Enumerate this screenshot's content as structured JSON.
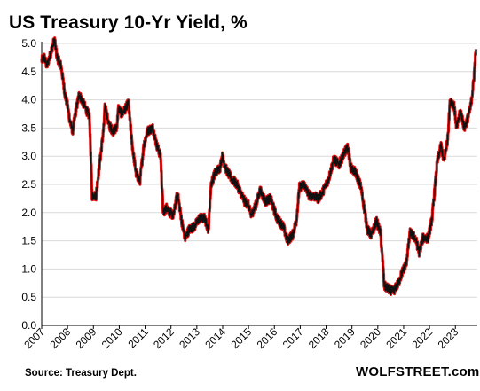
{
  "title": "US Treasury 10-Yr Yield, %",
  "source_note": "Source: Treasury Dept.",
  "brand": "WOLFSTREET.com",
  "colors": {
    "series_fill": "#e01010",
    "series_line": "#111111",
    "grid": "#d9d9d9",
    "axis": "#000000"
  },
  "chart_data": {
    "type": "line",
    "title": "US Treasury 10-Yr Yield, %",
    "xlabel": "",
    "ylabel": "",
    "xlim": [
      2007.0,
      2023.85
    ],
    "ylim": [
      0,
      5.0
    ],
    "grid": true,
    "y_ticks": [
      "0.0",
      "0.5",
      "1.0",
      "1.5",
      "2.0",
      "2.5",
      "3.0",
      "3.5",
      "4.0",
      "4.5",
      "5.0"
    ],
    "x_ticks": [
      "2007",
      "2008",
      "2009",
      "2010",
      "2011",
      "2012",
      "2013",
      "2014",
      "2015",
      "2016",
      "2017",
      "2018",
      "2019",
      "2020",
      "2021",
      "2022",
      "2023"
    ],
    "series": [
      {
        "x": [
          2007.0,
          2007.1,
          2007.2,
          2007.3,
          2007.45,
          2007.5,
          2007.6,
          2007.75,
          2007.9,
          2008.0,
          2008.1,
          2008.2,
          2008.3,
          2008.45,
          2008.55,
          2008.7,
          2008.85,
          2008.95,
          2009.1,
          2009.25,
          2009.4,
          2009.45,
          2009.6,
          2009.75,
          2009.9,
          2009.97,
          2010.1,
          2010.25,
          2010.35,
          2010.5,
          2010.65,
          2010.8,
          2010.95,
          2011.1,
          2011.3,
          2011.45,
          2011.6,
          2011.7,
          2011.85,
          2011.95,
          2012.1,
          2012.25,
          2012.45,
          2012.55,
          2012.7,
          2012.9,
          2013.1,
          2013.3,
          2013.45,
          2013.55,
          2013.7,
          2013.9,
          2013.98,
          2014.15,
          2014.35,
          2014.55,
          2014.75,
          2014.85,
          2014.98,
          2015.1,
          2015.3,
          2015.45,
          2015.65,
          2015.85,
          2016.1,
          2016.35,
          2016.5,
          2016.7,
          2016.85,
          2016.97,
          2017.15,
          2017.35,
          2017.5,
          2017.7,
          2017.85,
          2018.1,
          2018.3,
          2018.5,
          2018.75,
          2018.85,
          2018.95,
          2019.15,
          2019.35,
          2019.6,
          2019.75,
          2019.95,
          2020.1,
          2020.2,
          2020.25,
          2020.4,
          2020.6,
          2020.8,
          2020.95,
          2021.1,
          2021.25,
          2021.45,
          2021.6,
          2021.75,
          2021.95,
          2022.1,
          2022.3,
          2022.45,
          2022.55,
          2022.7,
          2022.8,
          2022.95,
          2023.05,
          2023.2,
          2023.35,
          2023.5,
          2023.6,
          2023.7,
          2023.8
        ],
        "y": [
          4.7,
          4.75,
          4.6,
          4.75,
          5.0,
          5.05,
          4.75,
          4.6,
          4.1,
          3.9,
          3.6,
          3.45,
          3.75,
          4.1,
          4.0,
          3.85,
          3.7,
          2.3,
          2.3,
          2.9,
          3.5,
          3.9,
          3.55,
          3.45,
          3.5,
          3.85,
          3.75,
          3.85,
          3.95,
          3.2,
          2.7,
          2.55,
          3.2,
          3.45,
          3.5,
          3.2,
          3.0,
          2.0,
          2.1,
          2.0,
          1.95,
          2.35,
          1.75,
          1.55,
          1.7,
          1.75,
          1.9,
          1.9,
          1.7,
          2.5,
          2.7,
          2.8,
          3.0,
          2.75,
          2.6,
          2.5,
          2.3,
          2.2,
          2.15,
          1.95,
          2.15,
          2.4,
          2.2,
          2.25,
          1.9,
          1.75,
          1.5,
          1.6,
          1.85,
          2.45,
          2.5,
          2.3,
          2.3,
          2.25,
          2.35,
          2.6,
          2.95,
          2.85,
          3.1,
          3.15,
          2.8,
          2.7,
          2.45,
          1.7,
          1.6,
          1.85,
          1.65,
          1.05,
          0.7,
          0.65,
          0.6,
          0.75,
          0.95,
          1.1,
          1.65,
          1.55,
          1.3,
          1.55,
          1.55,
          1.9,
          2.9,
          3.2,
          2.9,
          3.3,
          4.0,
          3.9,
          3.5,
          3.8,
          3.5,
          3.7,
          3.9,
          4.3,
          4.9
        ]
      }
    ]
  }
}
